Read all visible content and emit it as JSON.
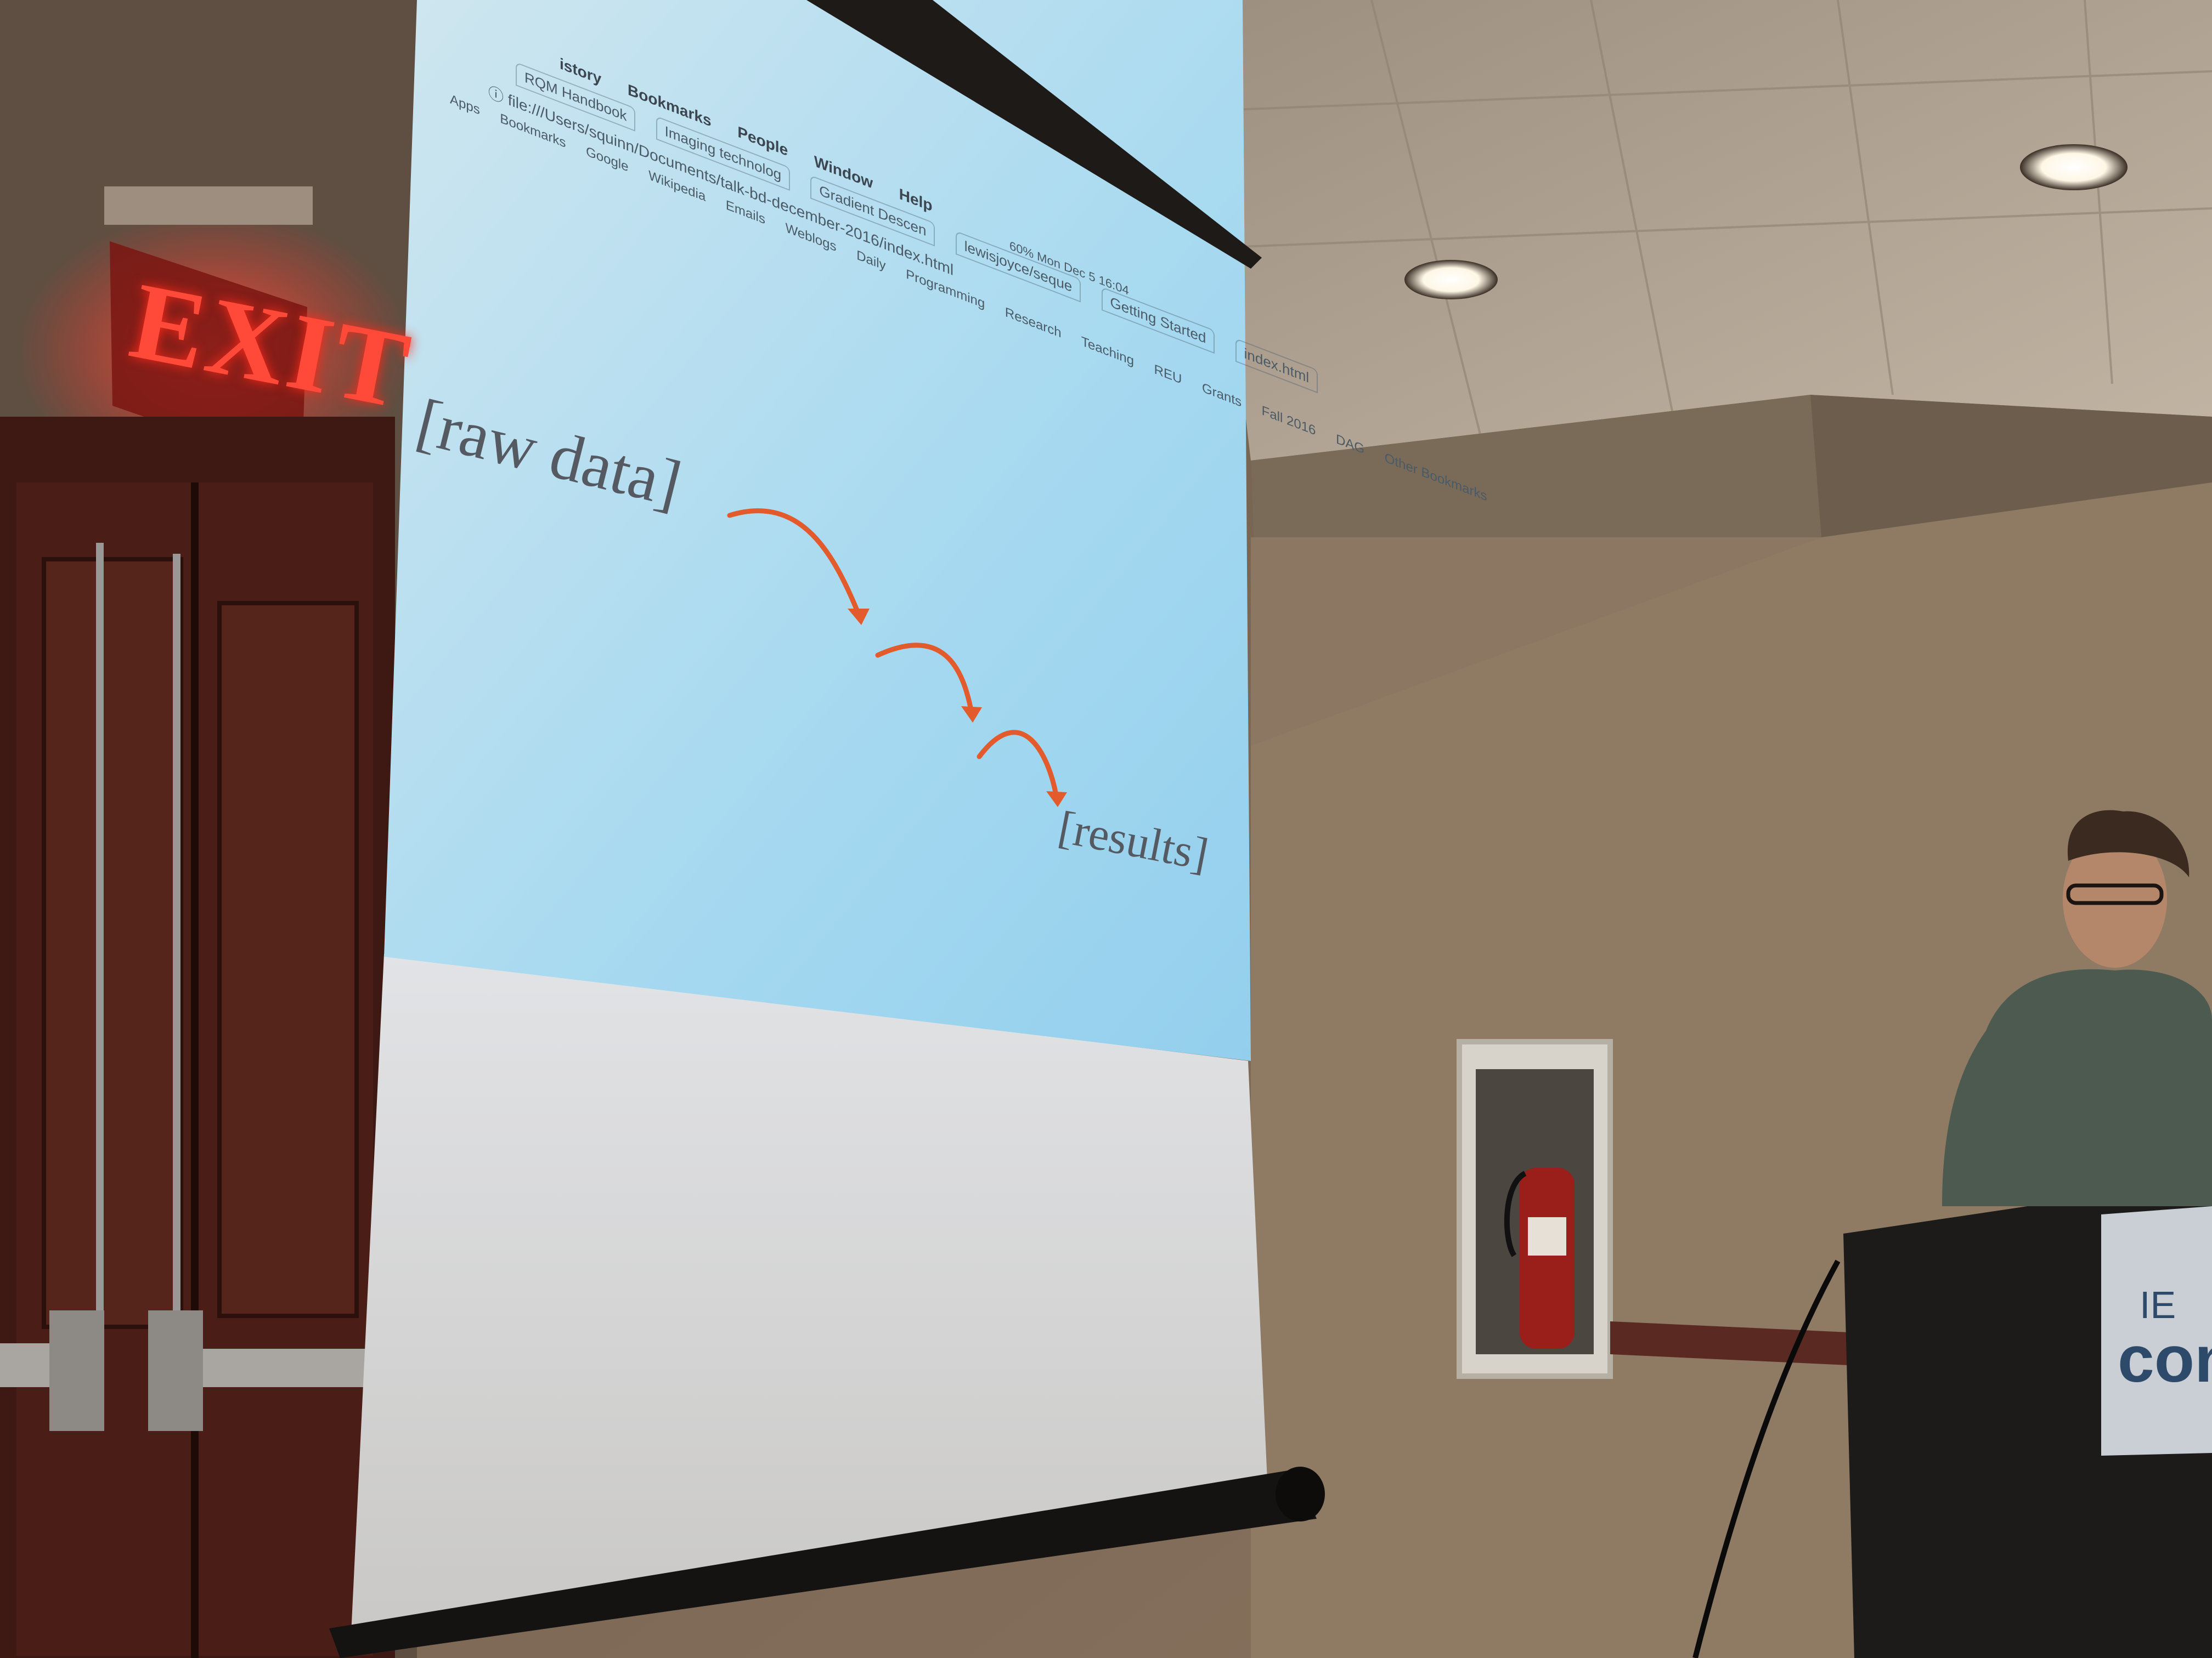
{
  "scene": {
    "description_colors": {
      "wall": "#7a6550",
      "ceiling": "#b7a998",
      "screen_light": "#a6daf0",
      "arrow": "#e35b2c",
      "exit_red": "#ff3a2a"
    }
  },
  "browser": {
    "menu": [
      "istory",
      "Bookmarks",
      "People",
      "Window",
      "Help"
    ],
    "tabs": [
      "RQM Handbook",
      "Imaging technolog",
      "Gradient Descen",
      "lewisjoyce/seque",
      "Getting Started",
      "index.html"
    ],
    "address": "file:///Users/squinn/Documents/talk-bd-december-2016/index.html",
    "bookmarks": [
      "Apps",
      "Bookmarks",
      "Google",
      "Wikipedia",
      "Emails",
      "Weblogs",
      "Daily",
      "Programming",
      "Research",
      "Teaching",
      "REU",
      "Grants",
      "Fall 2016",
      "DAG"
    ],
    "other_bookmarks": "Other Bookmarks",
    "status": "Mon Dec 5 16:04",
    "battery": "60%"
  },
  "slide": {
    "raw_label": "[raw data]",
    "results_label": "[results]"
  },
  "room": {
    "exit_sign": "EXIT",
    "podium_line1": "IE",
    "podium_line2": "con"
  }
}
